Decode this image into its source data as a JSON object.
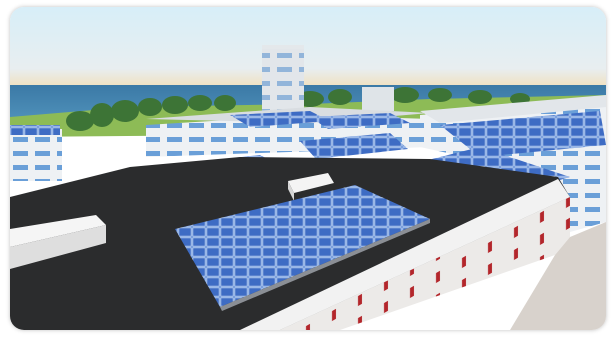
{
  "scene": {
    "description_label": "",
    "colors": {
      "sky_top": "#dff0f7",
      "sky_horizon": "#f2e6c9",
      "sea": "#3f7fa8",
      "trees": "#3f7a3a",
      "grass": "#8fbf5a",
      "roof": "#2a2b2c",
      "panel": "#3f6fc8",
      "building_wall": "#e9ecef",
      "window_blue": "#6ea2dc",
      "window_red": "#b22222"
    }
  }
}
